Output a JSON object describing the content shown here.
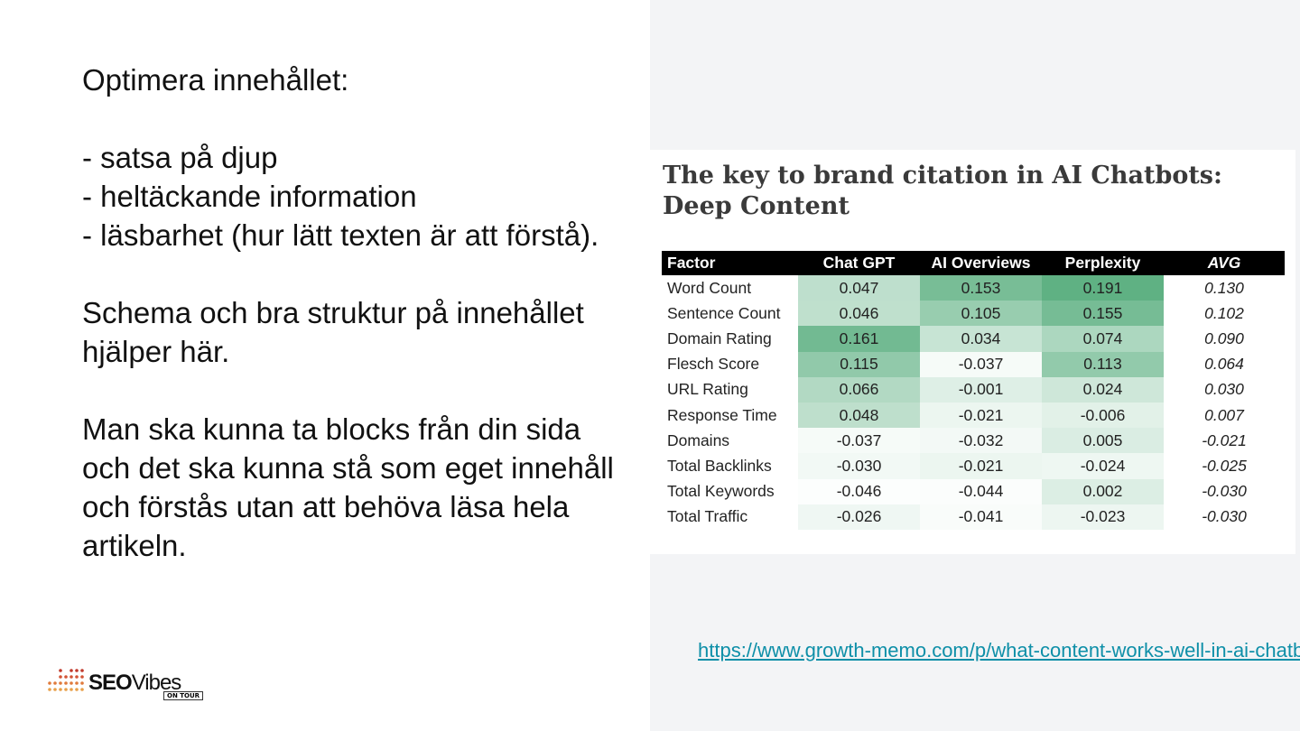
{
  "left": {
    "heading": "Optimera innehållet:",
    "bullets": [
      "- satsa på djup",
      "- heltäckande information",
      "- läsbarhet (hur lätt texten är att förstå)."
    ],
    "para1": "Schema och bra struktur på innehållet hjälper här.",
    "para2": "Man ska kunna ta blocks från din sida och det ska kunna stå som eget innehåll och förstås utan att behöva läsa hela artikeln."
  },
  "logo": {
    "text_bold": "SEO",
    "text_light": "Vibes",
    "badge": "ON TOUR"
  },
  "figure": {
    "title": "The key to brand citation in AI Chatbots: Deep Content",
    "headers": [
      "Factor",
      "Chat GPT",
      "AI Overviews",
      "Perplexity",
      "AVG"
    ],
    "rows": [
      [
        "Word Count",
        "0.047",
        "0.153",
        "0.191",
        "0.130"
      ],
      [
        "Sentence Count",
        "0.046",
        "0.105",
        "0.155",
        "0.102"
      ],
      [
        "Domain Rating",
        "0.161",
        "0.034",
        "0.074",
        "0.090"
      ],
      [
        "Flesch Score",
        "0.115",
        "-0.037",
        "0.113",
        "0.064"
      ],
      [
        "URL Rating",
        "0.066",
        "-0.001",
        "0.024",
        "0.030"
      ],
      [
        "Response Time",
        "0.048",
        "-0.021",
        "-0.006",
        "0.007"
      ],
      [
        "Domains",
        "-0.037",
        "-0.032",
        "0.005",
        "-0.021"
      ],
      [
        "Total Backlinks",
        "-0.030",
        "-0.021",
        "-0.024",
        "-0.025"
      ],
      [
        "Total Keywords",
        "-0.046",
        "-0.044",
        "0.002",
        "-0.030"
      ],
      [
        "Total Traffic",
        "-0.026",
        "-0.041",
        "-0.023",
        "-0.030"
      ]
    ],
    "heat_color": "#5fb183"
  },
  "link": "https://www.growth-memo.com/p/what-content-works-well-in-ai-chatbots"
}
